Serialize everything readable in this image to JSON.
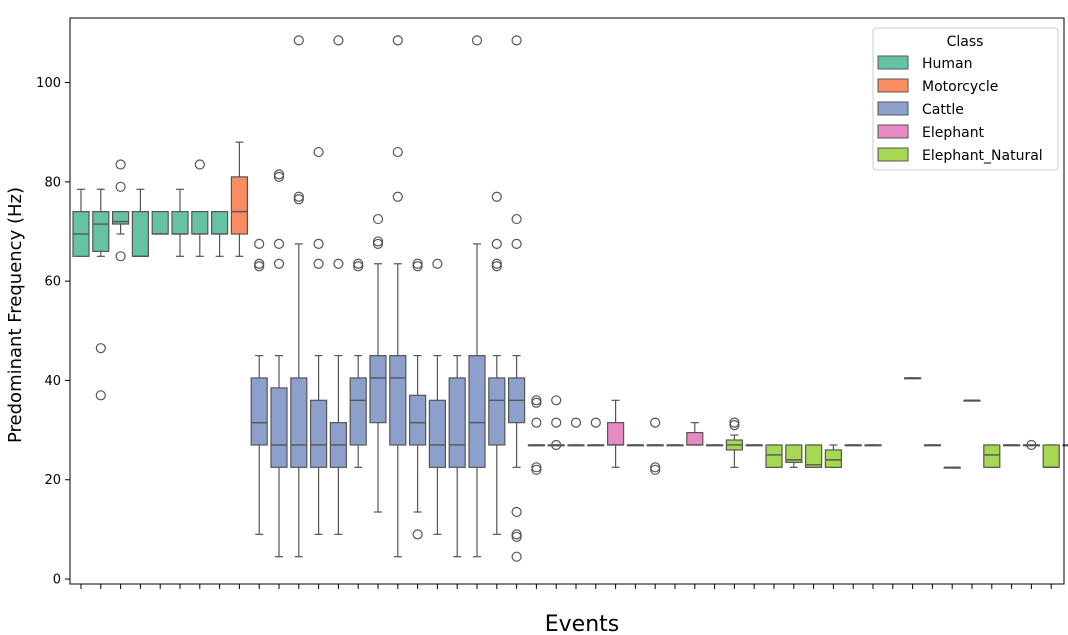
{
  "chart_data": {
    "type": "boxplot",
    "title": "",
    "xlabel": "Events",
    "ylabel": "Predominant Frequency (Hz)",
    "ylim": [
      -1,
      113
    ],
    "yticks": [
      0,
      20,
      40,
      60,
      80,
      100
    ],
    "xtick_labels": "none (tick marks only)",
    "legend": {
      "title": "Class",
      "position": "top-right",
      "entries": [
        {
          "name": "Human",
          "color": "#66c2a5"
        },
        {
          "name": "Motorcycle",
          "color": "#fc8d62"
        },
        {
          "name": "Cattle",
          "color": "#8da0cb"
        },
        {
          "name": "Elephant",
          "color": "#e78ac3"
        },
        {
          "name": "Elephant_Natural",
          "color": "#a6d854"
        }
      ]
    },
    "boxes": [
      {
        "cls": "Human",
        "wl": 65,
        "q1": 65,
        "med": 69.5,
        "q3": 74,
        "wh": 78.5,
        "out": []
      },
      {
        "cls": "Human",
        "wl": 65,
        "q1": 66,
        "med": 71.5,
        "q3": 74,
        "wh": 78.5,
        "out": [
          46.5,
          37
        ]
      },
      {
        "cls": "Human",
        "wl": 69.5,
        "q1": 71.5,
        "med": 72,
        "q3": 74,
        "wh": 74,
        "out": [
          83.5,
          79,
          65
        ]
      },
      {
        "cls": "Human",
        "wl": 65,
        "q1": 65,
        "med": 65,
        "q3": 74,
        "wh": 78.5,
        "out": []
      },
      {
        "cls": "Human",
        "wl": 69.5,
        "q1": 69.5,
        "med": 69.5,
        "q3": 74,
        "wh": 74,
        "out": []
      },
      {
        "cls": "Human",
        "wl": 65,
        "q1": 69.5,
        "med": 69.5,
        "q3": 74,
        "wh": 78.5,
        "out": []
      },
      {
        "cls": "Human",
        "wl": 65,
        "q1": 69.5,
        "med": 69.5,
        "q3": 74,
        "wh": 74,
        "out": [
          83.5
        ]
      },
      {
        "cls": "Human",
        "wl": 65,
        "q1": 69.5,
        "med": 69.5,
        "q3": 74,
        "wh": 74,
        "out": []
      },
      {
        "cls": "Motorcycle",
        "wl": 65,
        "q1": 69.5,
        "med": 74,
        "q3": 81,
        "wh": 88,
        "out": []
      },
      {
        "cls": "Cattle",
        "wl": 9,
        "q1": 27,
        "med": 31.5,
        "q3": 40.5,
        "wh": 45,
        "out": [
          67.5,
          63.5,
          63
        ]
      },
      {
        "cls": "Cattle",
        "wl": 4.5,
        "q1": 22.5,
        "med": 27,
        "q3": 38.5,
        "wh": 45,
        "out": [
          81.5,
          81,
          67.5,
          63.5
        ]
      },
      {
        "cls": "Cattle",
        "wl": 4.5,
        "q1": 22.5,
        "med": 27,
        "q3": 40.5,
        "wh": 67.5,
        "out": [
          108.5,
          77,
          76.5
        ]
      },
      {
        "cls": "Cattle",
        "wl": 9,
        "q1": 22.5,
        "med": 27,
        "q3": 36,
        "wh": 45,
        "out": [
          86,
          67.5,
          63.5
        ]
      },
      {
        "cls": "Cattle",
        "wl": 9,
        "q1": 22.5,
        "med": 27,
        "q3": 31.5,
        "wh": 45,
        "out": [
          108.5,
          63.5
        ]
      },
      {
        "cls": "Cattle",
        "wl": 22.5,
        "q1": 27,
        "med": 36,
        "q3": 40.5,
        "wh": 45,
        "out": [
          63.5,
          63
        ]
      },
      {
        "cls": "Cattle",
        "wl": 13.5,
        "q1": 31.5,
        "med": 40.5,
        "q3": 45,
        "wh": 63.5,
        "out": [
          72.5,
          68,
          67.5
        ]
      },
      {
        "cls": "Cattle",
        "wl": 4.5,
        "q1": 27,
        "med": 40.5,
        "q3": 45,
        "wh": 63.5,
        "out": [
          108.5,
          86,
          77
        ]
      },
      {
        "cls": "Cattle",
        "wl": 13.5,
        "q1": 27,
        "med": 31.5,
        "q3": 37,
        "wh": 45,
        "out": [
          63.5,
          63,
          9
        ]
      },
      {
        "cls": "Cattle",
        "wl": 9,
        "q1": 22.5,
        "med": 27,
        "q3": 36,
        "wh": 45,
        "out": [
          63.5
        ]
      },
      {
        "cls": "Cattle",
        "wl": 4.5,
        "q1": 22.5,
        "med": 27,
        "q3": 40.5,
        "wh": 45,
        "out": []
      },
      {
        "cls": "Cattle",
        "wl": 4.5,
        "q1": 22.5,
        "med": 31.5,
        "q3": 45,
        "wh": 67.5,
        "out": [
          108.5
        ]
      },
      {
        "cls": "Cattle",
        "wl": 9,
        "q1": 27,
        "med": 36,
        "q3": 40.5,
        "wh": 45,
        "out": [
          77,
          67.5,
          63.5,
          63
        ]
      },
      {
        "cls": "Cattle",
        "wl": 22.5,
        "q1": 31.5,
        "med": 36,
        "q3": 40.5,
        "wh": 45,
        "out": [
          108.5,
          72.5,
          67.5,
          13.5,
          9,
          8.5,
          4.5
        ]
      },
      {
        "cls": "Cattle",
        "wl": 27,
        "q1": 27,
        "med": 27,
        "q3": 27,
        "wh": 27,
        "out": [
          36,
          35.5,
          31.5,
          22.5,
          22
        ]
      },
      {
        "cls": "Cattle",
        "wl": 27,
        "q1": 27,
        "med": 27,
        "q3": 27,
        "wh": 27,
        "out": [
          36,
          31.5,
          27
        ]
      },
      {
        "cls": "Cattle",
        "wl": 27,
        "q1": 27,
        "med": 27,
        "q3": 27,
        "wh": 27,
        "out": [
          31.5
        ]
      },
      {
        "cls": "Cattle",
        "wl": 27,
        "q1": 27,
        "med": 27,
        "q3": 27,
        "wh": 27,
        "out": [
          31.5
        ]
      },
      {
        "cls": "Elephant",
        "wl": 22.5,
        "q1": 27,
        "med": 27,
        "q3": 31.5,
        "wh": 36,
        "out": []
      },
      {
        "cls": "Cattle",
        "wl": 27,
        "q1": 27,
        "med": 27,
        "q3": 27,
        "wh": 27,
        "out": []
      },
      {
        "cls": "Cattle",
        "wl": 27,
        "q1": 27,
        "med": 27,
        "q3": 27,
        "wh": 27,
        "out": [
          31.5,
          22.5,
          22
        ]
      },
      {
        "cls": "Cattle",
        "wl": 27,
        "q1": 27,
        "med": 27,
        "q3": 27,
        "wh": 27,
        "out": []
      },
      {
        "cls": "Elephant",
        "wl": 27,
        "q1": 27,
        "med": 27,
        "q3": 29.5,
        "wh": 31.5,
        "out": []
      },
      {
        "cls": "Cattle",
        "wl": 27,
        "q1": 27,
        "med": 27,
        "q3": 27,
        "wh": 27,
        "out": []
      },
      {
        "cls": "Elephant_Natural",
        "wl": 22.5,
        "q1": 26,
        "med": 27,
        "q3": 28,
        "wh": 29,
        "out": [
          31.5,
          31
        ]
      },
      {
        "cls": "Cattle",
        "wl": 27,
        "q1": 27,
        "med": 27,
        "q3": 27,
        "wh": 27,
        "out": []
      },
      {
        "cls": "Elephant_Natural",
        "wl": 22.5,
        "q1": 22.5,
        "med": 25,
        "q3": 27,
        "wh": 27,
        "out": []
      },
      {
        "cls": "Elephant_Natural",
        "wl": 22.5,
        "q1": 23.5,
        "med": 24,
        "q3": 27,
        "wh": 27,
        "out": []
      },
      {
        "cls": "Elephant_Natural",
        "wl": 22.5,
        "q1": 22.5,
        "med": 23,
        "q3": 27,
        "wh": 27,
        "out": []
      },
      {
        "cls": "Elephant_Natural",
        "wl": 22.5,
        "q1": 22.5,
        "med": 24,
        "q3": 26,
        "wh": 27,
        "out": []
      },
      {
        "cls": "Cattle",
        "wl": 27,
        "q1": 27,
        "med": 27,
        "q3": 27,
        "wh": 27,
        "out": []
      },
      {
        "cls": "Cattle",
        "wl": 27,
        "q1": 27,
        "med": 27,
        "q3": 27,
        "wh": 27,
        "out": []
      },
      {
        "cls": "none",
        "empty": true
      },
      {
        "cls": "Cattle",
        "wl": 40.5,
        "q1": 40.5,
        "med": 40.5,
        "q3": 40.5,
        "wh": 40.5,
        "out": []
      },
      {
        "cls": "Cattle",
        "wl": 27,
        "q1": 27,
        "med": 27,
        "q3": 27,
        "wh": 27,
        "out": []
      },
      {
        "cls": "Cattle",
        "wl": 22.5,
        "q1": 22.5,
        "med": 22.5,
        "q3": 22.5,
        "wh": 22.5,
        "out": []
      },
      {
        "cls": "Cattle",
        "wl": 36,
        "q1": 36,
        "med": 36,
        "q3": 36,
        "wh": 36,
        "out": []
      },
      {
        "cls": "Elephant_Natural",
        "wl": 22.5,
        "q1": 22.5,
        "med": 25,
        "q3": 27,
        "wh": 27,
        "out": []
      },
      {
        "cls": "Cattle",
        "wl": 27,
        "q1": 27,
        "med": 27,
        "q3": 27,
        "wh": 27,
        "out": []
      },
      {
        "cls": "Cattle",
        "wl": 27,
        "q1": 27,
        "med": 27,
        "q3": 27,
        "wh": 27,
        "out": [
          27
        ]
      },
      {
        "cls": "Elephant_Natural",
        "wl": 22.5,
        "q1": 22.5,
        "med": 22.5,
        "q3": 27,
        "wh": 27,
        "out": []
      },
      {
        "cls": "Cattle",
        "wl": 27,
        "q1": 27,
        "med": 27,
        "q3": 27,
        "wh": 27,
        "out": []
      }
    ]
  }
}
